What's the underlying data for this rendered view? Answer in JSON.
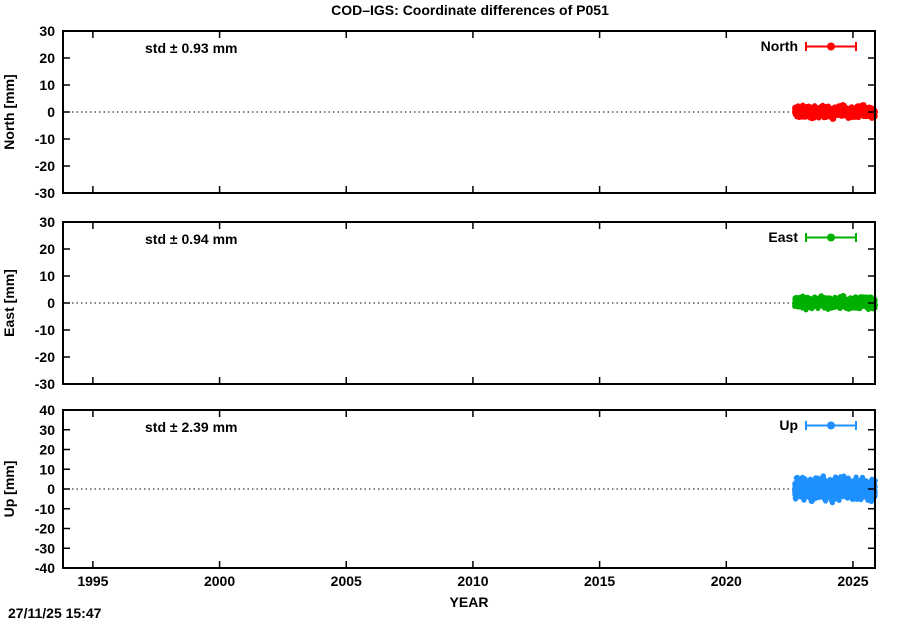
{
  "title": "COD–IGS: Coordinate differences of P051",
  "timestamp": "27/11/25 15:47",
  "chart_data": {
    "type": "scatter",
    "title": "COD–IGS: Coordinate differences of P051",
    "xlabel": "YEAR",
    "xlim": [
      1993.82,
      2025.87
    ],
    "xticks": [
      1995,
      2000,
      2005,
      2010,
      2015,
      2020,
      2025
    ],
    "grid": "zero-line-dotted-only",
    "legend_position": "top-right-inside",
    "panels": [
      {
        "id": "north",
        "ylabel": "North [mm]",
        "ylim": [
          -30,
          30
        ],
        "ytick_step": 10,
        "std_label": "std ± 0.93 mm",
        "legend_label": "North",
        "color": "#ff0000",
        "zero_line": true,
        "series": {
          "style": "points-with-errorbars",
          "x_start": 2022.7,
          "x_end": 2025.88,
          "n_points": 1150,
          "mean_mm": 0.0,
          "std_mm": 0.93
        }
      },
      {
        "id": "east",
        "ylabel": "East [mm]",
        "ylim": [
          -30,
          30
        ],
        "ytick_step": 10,
        "std_label": "std ± 0.94 mm",
        "legend_label": "East",
        "color": "#00b000",
        "zero_line": true,
        "series": {
          "style": "points-with-errorbars",
          "x_start": 2022.7,
          "x_end": 2025.88,
          "n_points": 1150,
          "mean_mm": 0.0,
          "std_mm": 0.94
        }
      },
      {
        "id": "up",
        "ylabel": "Up [mm]",
        "ylim": [
          -40,
          40
        ],
        "ytick_step": 10,
        "std_label": "std ± 2.39 mm",
        "legend_label": "Up",
        "color": "#1e90ff",
        "zero_line": true,
        "series": {
          "style": "points-with-errorbars",
          "x_start": 2022.7,
          "x_end": 2025.88,
          "n_points": 1150,
          "mean_mm": 0.0,
          "std_mm": 2.39
        }
      }
    ]
  }
}
